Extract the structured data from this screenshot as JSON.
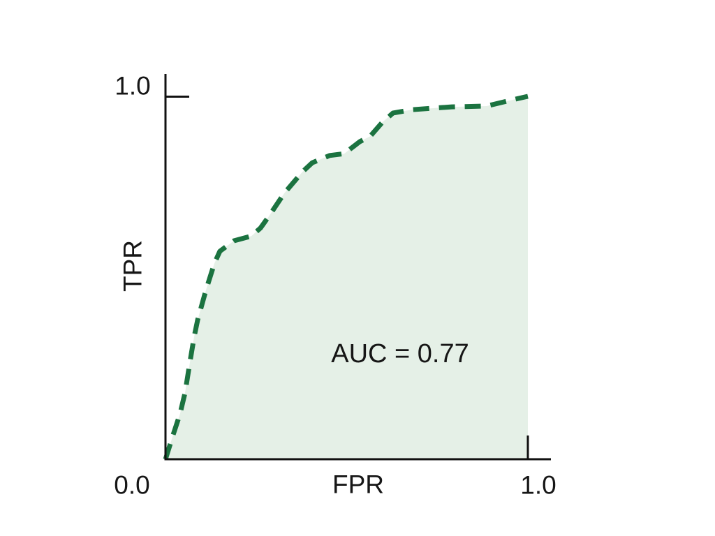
{
  "chart_data": {
    "type": "area",
    "subtype": "roc-curve",
    "title": "",
    "xlabel": "FPR",
    "ylabel": "TPR",
    "xlim": [
      0,
      1
    ],
    "ylim": [
      0,
      1
    ],
    "grid": false,
    "legend": "none",
    "annotation": {
      "text": "AUC = 0.77",
      "x": 0.65,
      "y": 0.29
    },
    "auc_value": 0.77,
    "ticks": {
      "x": [
        {
          "value": 0,
          "label": "0.0"
        },
        {
          "value": 1,
          "label": "1.0"
        }
      ],
      "y": [
        {
          "value": 1,
          "label": "1.0"
        }
      ]
    },
    "colors": {
      "line": "#1b7340",
      "fill": "#e5f0e7",
      "axis": "#111111",
      "text": "#161616",
      "background": "#ffffff"
    },
    "line_style": "dashed",
    "points": [
      [
        0.0,
        0.0
      ],
      [
        0.021,
        0.067
      ],
      [
        0.04,
        0.125
      ],
      [
        0.054,
        0.183
      ],
      [
        0.067,
        0.265
      ],
      [
        0.079,
        0.337
      ],
      [
        0.089,
        0.385
      ],
      [
        0.112,
        0.467
      ],
      [
        0.135,
        0.54
      ],
      [
        0.15,
        0.573
      ],
      [
        0.189,
        0.602
      ],
      [
        0.237,
        0.615
      ],
      [
        0.262,
        0.637
      ],
      [
        0.285,
        0.669
      ],
      [
        0.328,
        0.733
      ],
      [
        0.378,
        0.792
      ],
      [
        0.405,
        0.817
      ],
      [
        0.453,
        0.837
      ],
      [
        0.493,
        0.842
      ],
      [
        0.536,
        0.875
      ],
      [
        0.565,
        0.89
      ],
      [
        0.599,
        0.929
      ],
      [
        0.628,
        0.954
      ],
      [
        0.68,
        0.963
      ],
      [
        0.79,
        0.971
      ],
      [
        0.886,
        0.973
      ],
      [
        0.956,
        0.99
      ],
      [
        1.0,
        1.0
      ]
    ]
  }
}
